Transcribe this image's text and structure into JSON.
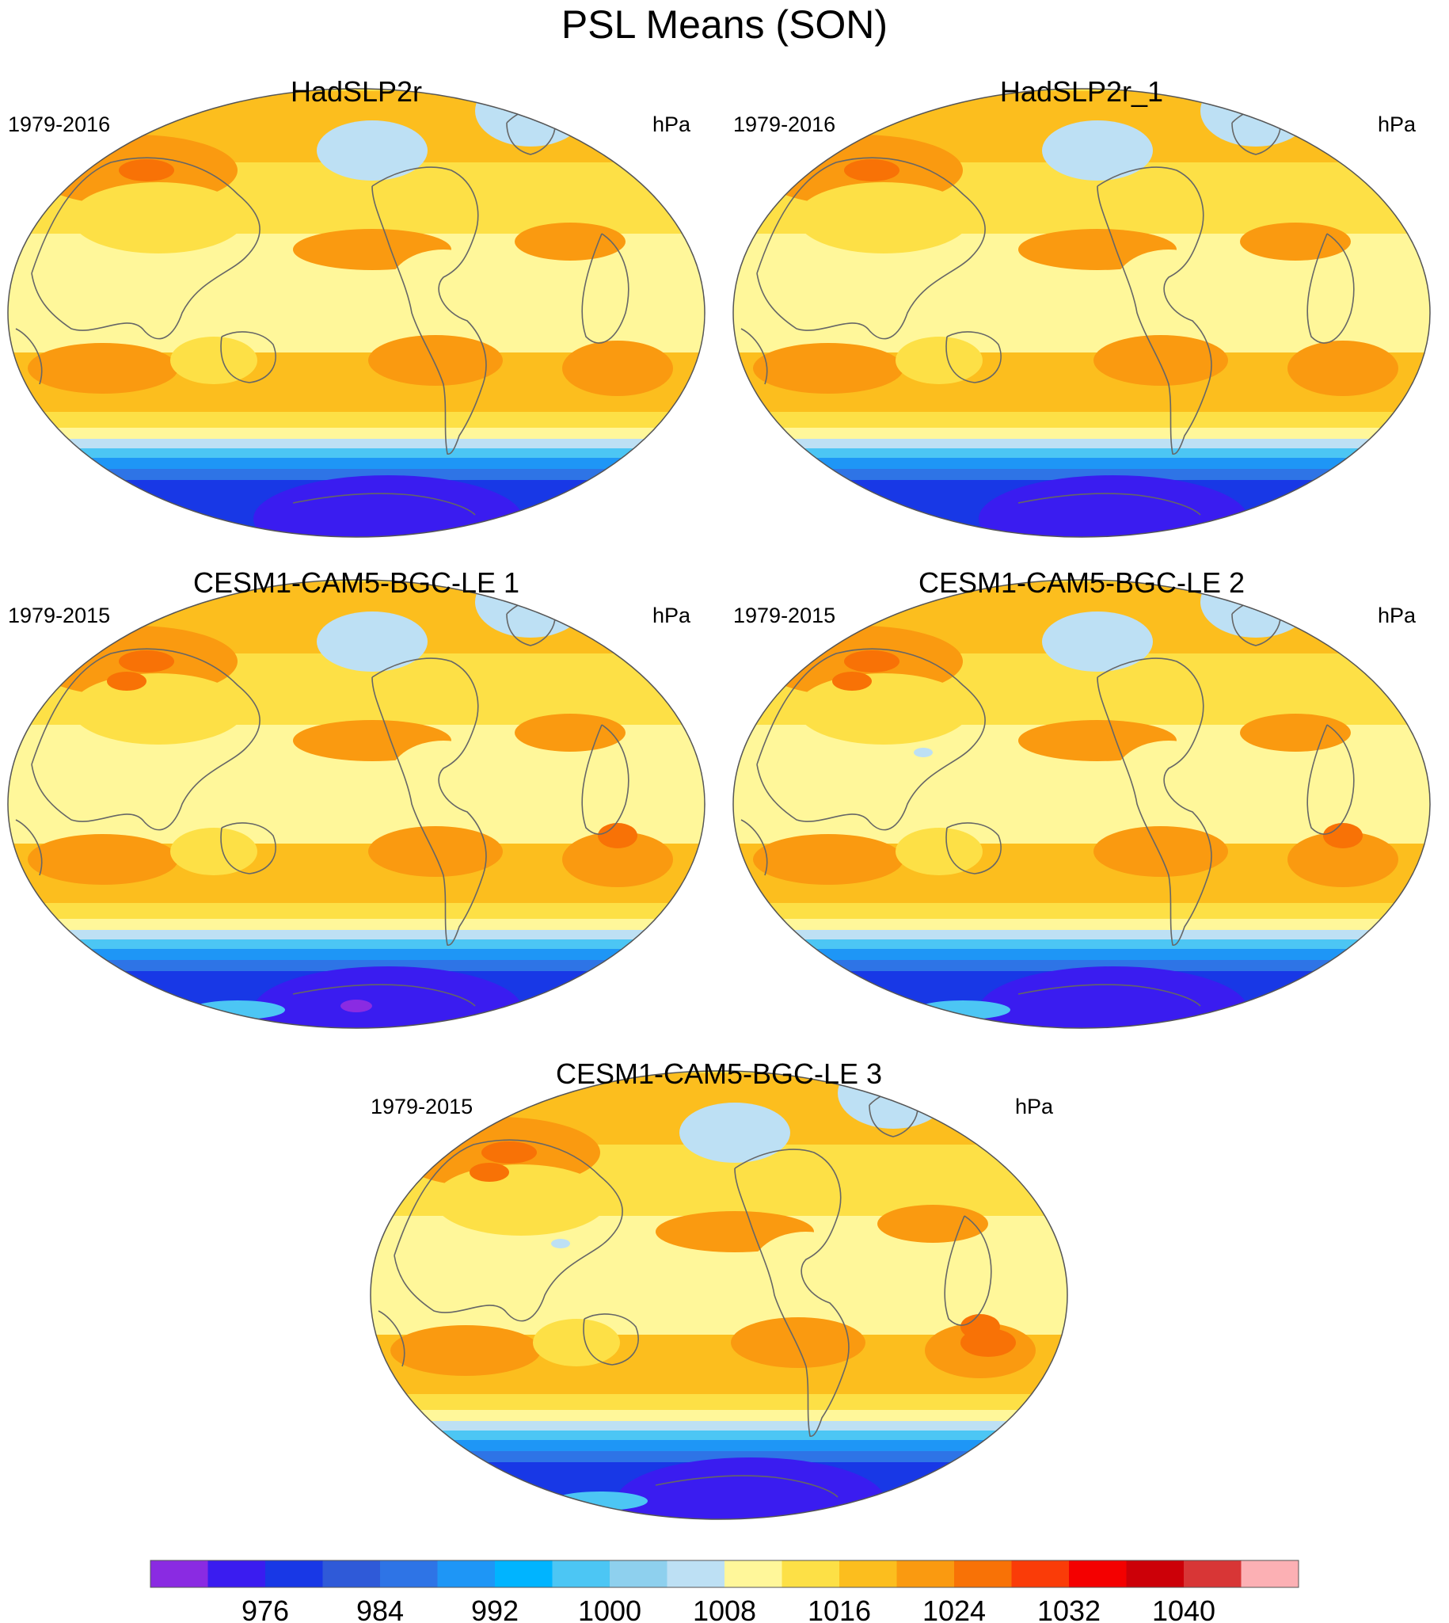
{
  "figure": {
    "title": "PSL Means (SON)"
  },
  "panels": [
    {
      "title": "HadSLP2r",
      "period": "1979-2016",
      "units": "hPa",
      "variant": 0
    },
    {
      "title": "HadSLP2r_1",
      "period": "1979-2016",
      "units": "hPa",
      "variant": 0
    },
    {
      "title": "CESM1-CAM5-BGC-LE 1",
      "period": "1979-2015",
      "units": "hPa",
      "variant": 1
    },
    {
      "title": "CESM1-CAM5-BGC-LE 2",
      "period": "1979-2015",
      "units": "hPa",
      "variant": 2
    },
    {
      "title": "CESM1-CAM5-BGC-LE 3",
      "period": "1979-2015",
      "units": "hPa",
      "variant": 3
    }
  ],
  "colorbar": {
    "colors": [
      "#8a2be2",
      "#3a1cf0",
      "#1838e6",
      "#2f5ad8",
      "#2e74e6",
      "#1e96f6",
      "#00b4ff",
      "#4cc6f4",
      "#8ed0ee",
      "#bde0f4",
      "#fff79a",
      "#fde046",
      "#fcbe1e",
      "#fa9a10",
      "#f87206",
      "#fa3c08",
      "#f40000",
      "#cc0008",
      "#d83636",
      "#fcb0b4"
    ],
    "labels": [
      "976",
      "984",
      "992",
      "1000",
      "1008",
      "1016",
      "1024",
      "1032",
      "1040"
    ],
    "label_boundary_index": [
      2,
      4,
      6,
      8,
      10,
      12,
      14,
      16,
      18
    ]
  },
  "palette": {
    "antarctic_low": "#3a1cf0",
    "deep_low": "#1838e6",
    "southern_ocean": "#2e74e6",
    "blue_band": "#4cc6f4",
    "light_blue": "#bde0f4",
    "pale_yellow": "#fff79a",
    "yellow": "#fde046",
    "gold": "#fcbe1e",
    "orange": "#fa9a10",
    "dark_orange": "#f87206",
    "coast": "#666666"
  }
}
